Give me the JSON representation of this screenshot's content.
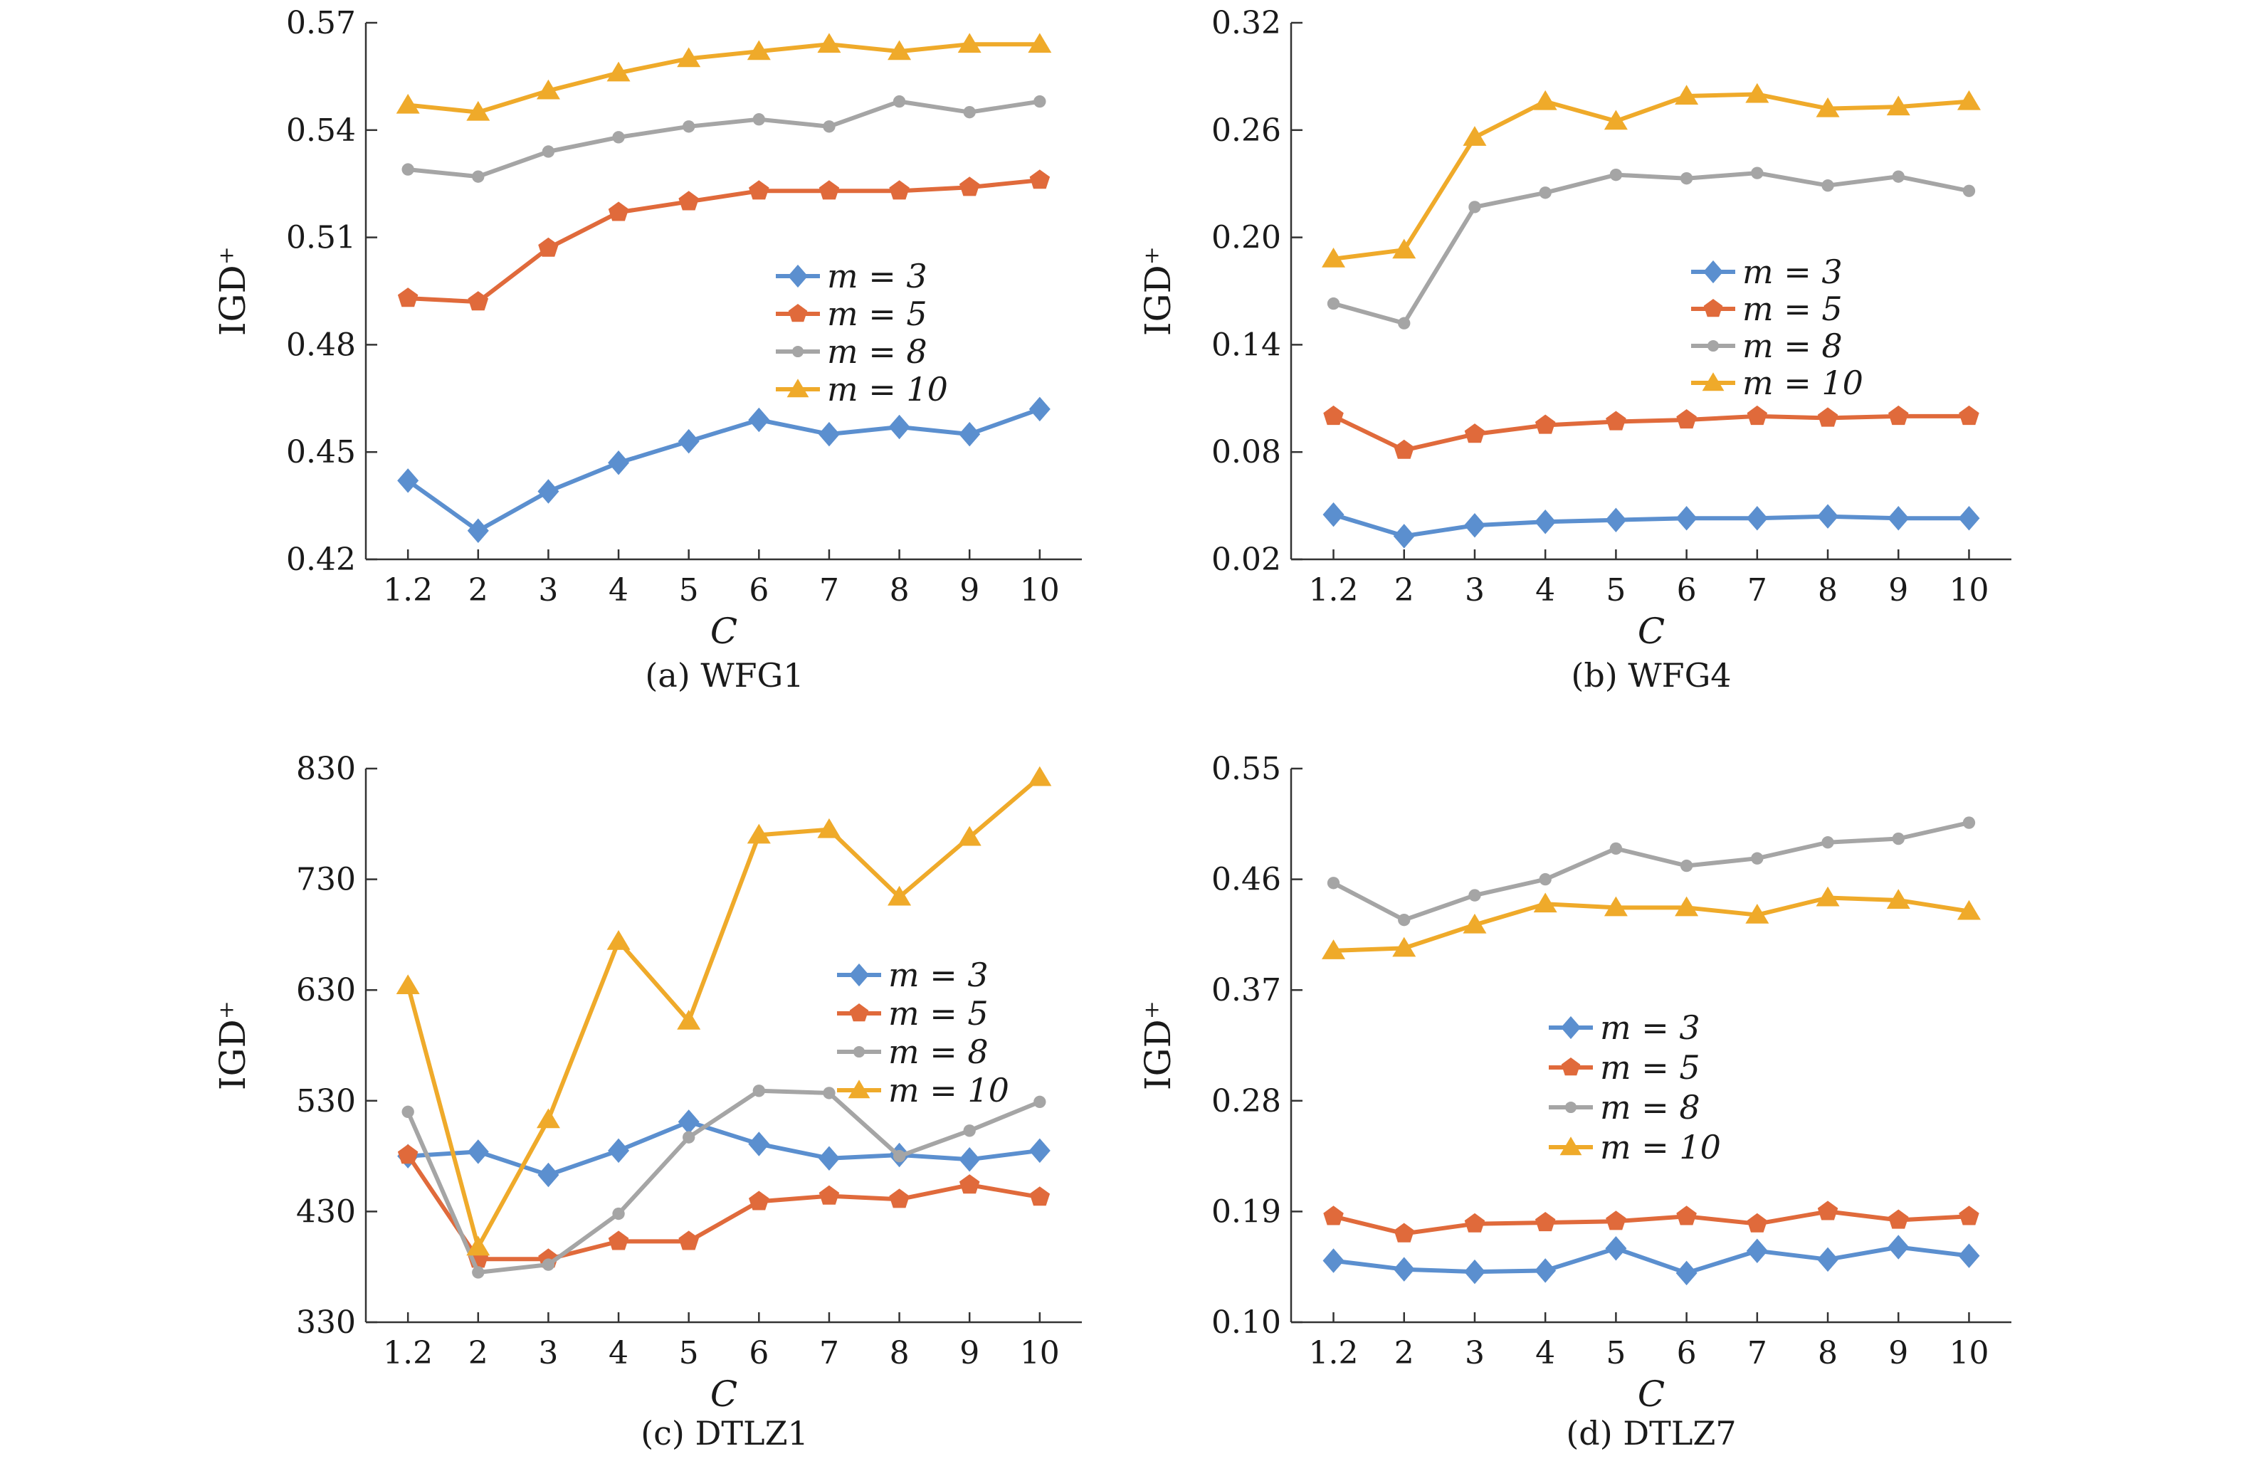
{
  "chart_data": [
    {
      "type": "line",
      "caption": "(a) WFG1",
      "xlabel": "C",
      "ylabel": "IGD⁺",
      "categories": [
        "1.2",
        "2",
        "3",
        "4",
        "5",
        "6",
        "7",
        "8",
        "9",
        "10"
      ],
      "ylim": [
        0.42,
        0.57
      ],
      "yticks": [
        "0.42",
        "0.45",
        "0.48",
        "0.51",
        "0.54",
        "0.57"
      ],
      "legend_position": "right-center",
      "series": [
        {
          "name": "m = 3",
          "color": "#5b8fcf",
          "marker": "diamond",
          "values": [
            0.442,
            0.428,
            0.439,
            0.447,
            0.453,
            0.459,
            0.455,
            0.457,
            0.455,
            0.462
          ]
        },
        {
          "name": "m = 5",
          "color": "#e06a3b",
          "marker": "pentagon",
          "values": [
            0.493,
            0.492,
            0.507,
            0.517,
            0.52,
            0.523,
            0.523,
            0.523,
            0.524,
            0.526
          ]
        },
        {
          "name": "m = 8",
          "color": "#a5a5a5",
          "marker": "circle",
          "values": [
            0.529,
            0.527,
            0.534,
            0.538,
            0.541,
            0.543,
            0.541,
            0.548,
            0.545,
            0.548
          ]
        },
        {
          "name": "m = 10",
          "color": "#efaa2a",
          "marker": "triangle",
          "values": [
            0.547,
            0.545,
            0.551,
            0.556,
            0.56,
            0.562,
            0.564,
            0.562,
            0.564,
            0.564
          ]
        }
      ]
    },
    {
      "type": "line",
      "caption": "(b) WFG4",
      "xlabel": "C",
      "ylabel": "IGD⁺",
      "categories": [
        "1.2",
        "2",
        "3",
        "4",
        "5",
        "6",
        "7",
        "8",
        "9",
        "10"
      ],
      "ylim": [
        0.02,
        0.32
      ],
      "yticks": [
        "0.02",
        "0.08",
        "0.14",
        "0.20",
        "0.26",
        "0.32"
      ],
      "legend_position": "right-center",
      "series": [
        {
          "name": "m = 3",
          "color": "#5b8fcf",
          "marker": "diamond",
          "values": [
            0.045,
            0.033,
            0.039,
            0.041,
            0.042,
            0.043,
            0.043,
            0.044,
            0.043,
            0.043
          ]
        },
        {
          "name": "m = 5",
          "color": "#e06a3b",
          "marker": "pentagon",
          "values": [
            0.1,
            0.081,
            0.09,
            0.095,
            0.097,
            0.098,
            0.1,
            0.099,
            0.1,
            0.1
          ]
        },
        {
          "name": "m = 8",
          "color": "#a5a5a5",
          "marker": "circle",
          "values": [
            0.163,
            0.152,
            0.217,
            0.225,
            0.235,
            0.233,
            0.236,
            0.229,
            0.234,
            0.226
          ]
        },
        {
          "name": "m = 10",
          "color": "#efaa2a",
          "marker": "triangle",
          "values": [
            0.188,
            0.193,
            0.256,
            0.276,
            0.265,
            0.279,
            0.28,
            0.272,
            0.273,
            0.276
          ]
        }
      ]
    },
    {
      "type": "line",
      "caption": "(c) DTLZ1",
      "xlabel": "C",
      "ylabel": "IGD⁺",
      "categories": [
        "1.2",
        "2",
        "3",
        "4",
        "5",
        "6",
        "7",
        "8",
        "9",
        "10"
      ],
      "ylim": [
        330,
        830
      ],
      "yticks": [
        "330",
        "430",
        "530",
        "630",
        "730",
        "830"
      ],
      "legend_position": "right-center",
      "series": [
        {
          "name": "m = 3",
          "color": "#5b8fcf",
          "marker": "diamond",
          "values": [
            480,
            484,
            463,
            485,
            511,
            491,
            478,
            481,
            477,
            485
          ]
        },
        {
          "name": "m = 5",
          "color": "#e06a3b",
          "marker": "pentagon",
          "values": [
            481,
            387,
            387,
            403,
            403,
            439,
            444,
            441,
            454,
            443
          ]
        },
        {
          "name": "m = 8",
          "color": "#a5a5a5",
          "marker": "circle",
          "values": [
            520,
            375,
            382,
            428,
            497,
            539,
            537,
            480,
            503,
            529
          ]
        },
        {
          "name": "m = 10",
          "color": "#efaa2a",
          "marker": "triangle",
          "values": [
            634,
            398,
            513,
            674,
            602,
            770,
            775,
            714,
            768,
            822
          ]
        }
      ]
    },
    {
      "type": "line",
      "caption": "(d) DTLZ7",
      "xlabel": "C",
      "ylabel": "IGD⁺",
      "categories": [
        "1.2",
        "2",
        "3",
        "4",
        "5",
        "6",
        "7",
        "8",
        "9",
        "10"
      ],
      "ylim": [
        0.1,
        0.55
      ],
      "yticks": [
        "0.10",
        "0.19",
        "0.28",
        "0.37",
        "0.46",
        "0.55"
      ],
      "legend_position": "center",
      "series": [
        {
          "name": "m = 3",
          "color": "#5b8fcf",
          "marker": "diamond",
          "values": [
            0.15,
            0.143,
            0.141,
            0.142,
            0.16,
            0.14,
            0.158,
            0.151,
            0.161,
            0.154
          ]
        },
        {
          "name": "m = 5",
          "color": "#e06a3b",
          "marker": "pentagon",
          "values": [
            0.186,
            0.172,
            0.18,
            0.181,
            0.182,
            0.186,
            0.18,
            0.19,
            0.183,
            0.186
          ]
        },
        {
          "name": "m = 8",
          "color": "#a5a5a5",
          "marker": "circle",
          "values": [
            0.457,
            0.427,
            0.447,
            0.46,
            0.485,
            0.471,
            0.477,
            0.49,
            0.493,
            0.506
          ]
        },
        {
          "name": "m = 10",
          "color": "#efaa2a",
          "marker": "triangle",
          "values": [
            0.402,
            0.404,
            0.423,
            0.44,
            0.437,
            0.437,
            0.431,
            0.445,
            0.443,
            0.434
          ]
        }
      ]
    }
  ]
}
